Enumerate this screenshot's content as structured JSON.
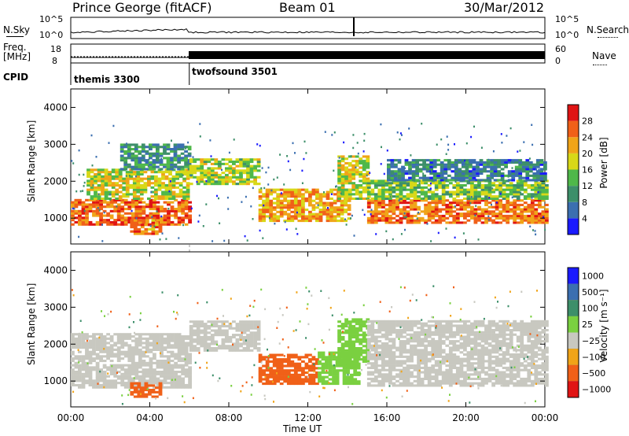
{
  "header": {
    "station": "Prince George (fitACF)",
    "beam": "Beam 01",
    "date": "30/Mar/2012"
  },
  "strip": {
    "nsky_label": "N.Sky",
    "nsearch_label": "N.Search",
    "freq_label": "Freq.",
    "freq_unit": "[MHz]",
    "nave_label": "Nave",
    "cpid_label": "CPID",
    "nsky_ticks": [
      "10^5",
      "10^0"
    ],
    "nsearch_ticks": [
      "10^5",
      "10^0"
    ],
    "freq_ticks": [
      "18",
      "8"
    ],
    "nave_ticks": [
      "60",
      "0"
    ],
    "cpid_segments": [
      {
        "start_hour": 0,
        "end_hour": 6,
        "label": "themis 3300"
      },
      {
        "start_hour": 6,
        "end_hour": 24,
        "label": "twofsound 3501"
      }
    ]
  },
  "chart_data": [
    {
      "type": "heatmap",
      "title": "",
      "xlabel": "Time UT",
      "ylabel": "Slant Range [km]",
      "xlim": [
        0,
        24
      ],
      "ylim": [
        300,
        4500
      ],
      "x_ticks": [
        "00:00",
        "04:00",
        "08:00",
        "12:00",
        "16:00",
        "20:00",
        "00:00"
      ],
      "y_ticks": [
        "1000",
        "2000",
        "3000",
        "4000"
      ],
      "colorbar": {
        "label": "Power [dB]",
        "ticks": [
          "4",
          "8",
          "12",
          "16",
          "20",
          "24",
          "28"
        ],
        "colors": [
          "#1a1aff",
          "#3b6fb0",
          "#3d8f6a",
          "#4fb84a",
          "#d8d818",
          "#f0a418",
          "#f06018",
          "#e01414"
        ]
      },
      "bands": [
        {
          "t0": 0.0,
          "t1": 6.0,
          "r0": 800,
          "r1": 1500,
          "level": 26
        },
        {
          "t0": 0.8,
          "t1": 6.0,
          "r0": 1500,
          "r1": 2300,
          "level": 18
        },
        {
          "t0": 2.5,
          "t1": 6.0,
          "r0": 2300,
          "r1": 3000,
          "level": 10
        },
        {
          "t0": 3.0,
          "t1": 4.6,
          "r0": 550,
          "r1": 950,
          "level": 24
        },
        {
          "t0": 6.0,
          "t1": 9.5,
          "r0": 1900,
          "r1": 2600,
          "level": 16
        },
        {
          "t0": 9.5,
          "t1": 14.0,
          "r0": 900,
          "r1": 1800,
          "level": 22
        },
        {
          "t0": 13.5,
          "t1": 15.0,
          "r0": 1500,
          "r1": 2700,
          "level": 17
        },
        {
          "t0": 15.0,
          "t1": 24.0,
          "r0": 850,
          "r1": 1500,
          "level": 25
        },
        {
          "t0": 15.0,
          "t1": 24.0,
          "r0": 1500,
          "r1": 2000,
          "level": 15
        },
        {
          "t0": 16.0,
          "t1": 24.0,
          "r0": 2000,
          "r1": 2600,
          "level": 8
        }
      ]
    },
    {
      "type": "heatmap",
      "title": "",
      "xlabel": "Time UT",
      "ylabel": "Slant Range [km]",
      "xlim": [
        0,
        24
      ],
      "ylim": [
        300,
        4500
      ],
      "x_ticks": [
        "00:00",
        "04:00",
        "08:00",
        "12:00",
        "16:00",
        "20:00",
        "00:00"
      ],
      "y_ticks": [
        "1000",
        "2000",
        "3000",
        "4000"
      ],
      "colorbar": {
        "label": "Velocity [m s⁻¹]",
        "ticks": [
          "1000",
          "500",
          "100",
          "25",
          "−25",
          "−100",
          "−500",
          "−1000"
        ],
        "colors": [
          "#1a1aff",
          "#3b6fb0",
          "#3d8f6a",
          "#7ad040",
          "#c8c8c0",
          "#f0a418",
          "#f06018",
          "#e01414"
        ]
      },
      "bands": [
        {
          "t0": 0.0,
          "t1": 6.0,
          "r0": 800,
          "r1": 2300,
          "level": 0
        },
        {
          "t0": 3.0,
          "t1": 4.6,
          "r0": 550,
          "r1": 950,
          "level": -300
        },
        {
          "t0": 6.0,
          "t1": 9.5,
          "r0": 1800,
          "r1": 2600,
          "level": 0
        },
        {
          "t0": 9.5,
          "t1": 12.5,
          "r0": 900,
          "r1": 1700,
          "level": -400
        },
        {
          "t0": 12.5,
          "t1": 14.5,
          "r0": 900,
          "r1": 1800,
          "level": 60
        },
        {
          "t0": 13.5,
          "t1": 15.0,
          "r0": 1500,
          "r1": 2700,
          "level": 80
        },
        {
          "t0": 15.0,
          "t1": 24.0,
          "r0": 850,
          "r1": 2600,
          "level": 0
        }
      ]
    }
  ]
}
